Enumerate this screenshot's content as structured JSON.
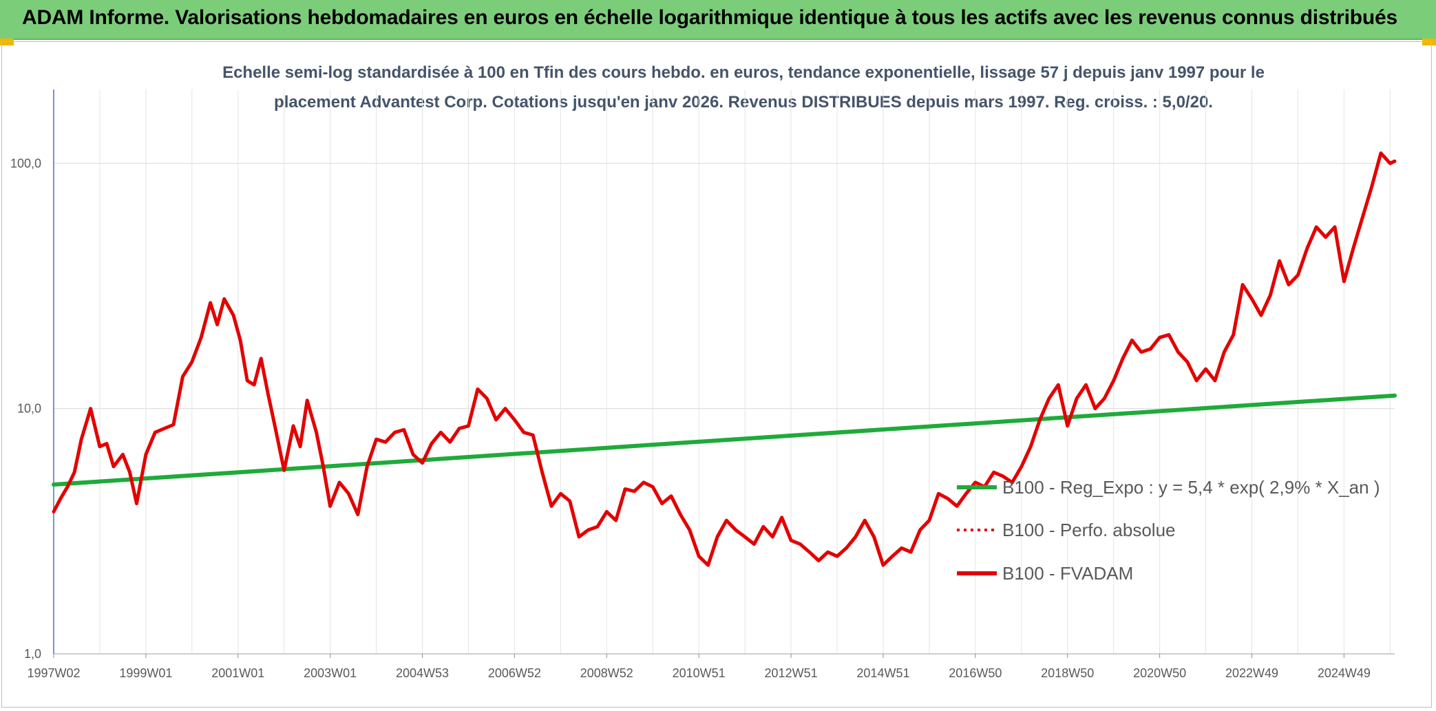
{
  "header": {
    "title": "ADAM Informe. Valorisations hebdomadaires en euros en échelle logarithmique identique à tous les actifs avec les revenus connus distribués"
  },
  "chart_data": {
    "type": "line",
    "title": "Echelle semi-log standardisée à 100 en Tfin des cours hebdo. en euros, tendance exponentielle, lissage 57 j depuis janv 1997 pour le",
    "subtitle": "placement Advantest Corp. Cotations jusqu'en janv 2026. Revenus DISTRIBUES depuis mars 1997. Reg. croiss. : 5,0/20.",
    "y_scale": "log",
    "ylim": [
      1,
      200
    ],
    "xlim": [
      1997.0,
      2026.1
    ],
    "y_ticks": [
      {
        "value": 1,
        "label": "1,0"
      },
      {
        "value": 10,
        "label": "10,0"
      },
      {
        "value": 100,
        "label": "100,0"
      }
    ],
    "x_ticks": [
      {
        "value": 1997.0,
        "label": "1997W02"
      },
      {
        "value": 1999.0,
        "label": "1999W01"
      },
      {
        "value": 2001.0,
        "label": "2001W01"
      },
      {
        "value": 2003.0,
        "label": "2003W01"
      },
      {
        "value": 2005.0,
        "label": "2004W53"
      },
      {
        "value": 2007.0,
        "label": "2006W52"
      },
      {
        "value": 2009.0,
        "label": "2008W52"
      },
      {
        "value": 2011.0,
        "label": "2010W51"
      },
      {
        "value": 2013.0,
        "label": "2012W51"
      },
      {
        "value": 2015.0,
        "label": "2014W51"
      },
      {
        "value": 2017.0,
        "label": "2016W50"
      },
      {
        "value": 2019.0,
        "label": "2018W50"
      },
      {
        "value": 2021.0,
        "label": "2020W50"
      },
      {
        "value": 2023.0,
        "label": "2022W49"
      },
      {
        "value": 2025.0,
        "label": "2024W49"
      }
    ],
    "grid": {
      "vertical": true,
      "horizontal": true
    },
    "legend": {
      "position": "right"
    },
    "series": [
      {
        "name": "B100 - Reg_Expo : y = 5,4 * exp( 2,9% *  X_an )",
        "color": "#1faa3a",
        "style": "solid",
        "x": [
          1997.0,
          2026.1
        ],
        "y": [
          4.9,
          11.3
        ]
      },
      {
        "name": "B100 - Perfo. absolue",
        "color": "#e30000",
        "style": "dotted",
        "x": [],
        "y": []
      },
      {
        "name": "B100 - FVADAM",
        "color": "#e30000",
        "style": "solid",
        "x": [
          1997.0,
          1997.15,
          1997.3,
          1997.45,
          1997.6,
          1997.8,
          1998.0,
          1998.15,
          1998.3,
          1998.5,
          1998.65,
          1998.8,
          1999.0,
          1999.2,
          1999.4,
          1999.6,
          1999.8,
          2000.0,
          2000.2,
          2000.4,
          2000.55,
          2000.7,
          2000.9,
          2001.05,
          2001.2,
          2001.35,
          2001.5,
          2001.65,
          2001.8,
          2002.0,
          2002.2,
          2002.35,
          2002.5,
          2002.7,
          2002.85,
          2003.0,
          2003.2,
          2003.4,
          2003.6,
          2003.8,
          2004.0,
          2004.2,
          2004.4,
          2004.6,
          2004.8,
          2005.0,
          2005.2,
          2005.4,
          2005.6,
          2005.8,
          2006.0,
          2006.2,
          2006.4,
          2006.6,
          2006.8,
          2007.0,
          2007.2,
          2007.4,
          2007.6,
          2007.8,
          2008.0,
          2008.2,
          2008.4,
          2008.6,
          2008.8,
          2009.0,
          2009.2,
          2009.4,
          2009.6,
          2009.8,
          2010.0,
          2010.2,
          2010.4,
          2010.6,
          2010.8,
          2011.0,
          2011.2,
          2011.4,
          2011.6,
          2011.8,
          2012.0,
          2012.2,
          2012.4,
          2012.6,
          2012.8,
          2013.0,
          2013.2,
          2013.4,
          2013.6,
          2013.8,
          2014.0,
          2014.2,
          2014.4,
          2014.6,
          2014.8,
          2015.0,
          2015.2,
          2015.4,
          2015.6,
          2015.8,
          2016.0,
          2016.2,
          2016.4,
          2016.6,
          2016.8,
          2017.0,
          2017.2,
          2017.4,
          2017.6,
          2017.8,
          2018.0,
          2018.2,
          2018.4,
          2018.6,
          2018.8,
          2019.0,
          2019.2,
          2019.4,
          2019.6,
          2019.8,
          2020.0,
          2020.2,
          2020.4,
          2020.6,
          2020.8,
          2021.0,
          2021.2,
          2021.4,
          2021.6,
          2021.8,
          2022.0,
          2022.2,
          2022.4,
          2022.6,
          2022.8,
          2023.0,
          2023.2,
          2023.4,
          2023.6,
          2023.8,
          2024.0,
          2024.2,
          2024.4,
          2024.6,
          2024.8,
          2025.0,
          2025.2,
          2025.4,
          2025.6,
          2025.8,
          2026.0,
          2026.1
        ],
        "y": [
          3.8,
          4.3,
          4.8,
          5.5,
          7.5,
          10.0,
          7.0,
          7.2,
          5.8,
          6.5,
          5.5,
          4.1,
          6.5,
          8.0,
          8.3,
          8.6,
          13.5,
          15.5,
          19.5,
          27.0,
          22.0,
          28.0,
          24.0,
          19.0,
          13.0,
          12.5,
          16.0,
          11.5,
          8.5,
          5.6,
          8.5,
          7.0,
          10.8,
          8.0,
          5.8,
          4.0,
          5.0,
          4.5,
          3.7,
          5.8,
          7.5,
          7.3,
          8.0,
          8.2,
          6.5,
          6.0,
          7.2,
          8.0,
          7.3,
          8.3,
          8.5,
          12.0,
          11.0,
          9.0,
          10.0,
          9.0,
          8.0,
          7.8,
          5.5,
          4.0,
          4.5,
          4.2,
          3.0,
          3.2,
          3.3,
          3.8,
          3.5,
          4.7,
          4.6,
          5.0,
          4.8,
          4.1,
          4.4,
          3.7,
          3.2,
          2.5,
          2.3,
          3.0,
          3.5,
          3.2,
          3.0,
          2.8,
          3.3,
          3.0,
          3.6,
          2.9,
          2.8,
          2.6,
          2.4,
          2.6,
          2.5,
          2.7,
          3.0,
          3.5,
          3.0,
          2.3,
          2.5,
          2.7,
          2.6,
          3.2,
          3.5,
          4.5,
          4.3,
          4.0,
          4.5,
          5.0,
          4.8,
          5.5,
          5.3,
          5.0,
          5.8,
          7.0,
          9.0,
          11.0,
          12.5,
          8.5,
          11.0,
          12.5,
          10.0,
          11.0,
          13.0,
          16.0,
          19.0,
          17.0,
          17.5,
          19.5,
          20.0,
          17.0,
          15.5,
          13.0,
          14.5,
          13.0,
          17.0,
          20.0,
          32.0,
          28.0,
          24.0,
          29.0,
          40.0,
          32.0,
          35.0,
          45.0,
          55.0,
          50.0,
          55.0,
          33.0,
          45.0,
          60.0,
          80.0,
          110.0,
          100.0,
          102.0
        ]
      }
    ]
  }
}
